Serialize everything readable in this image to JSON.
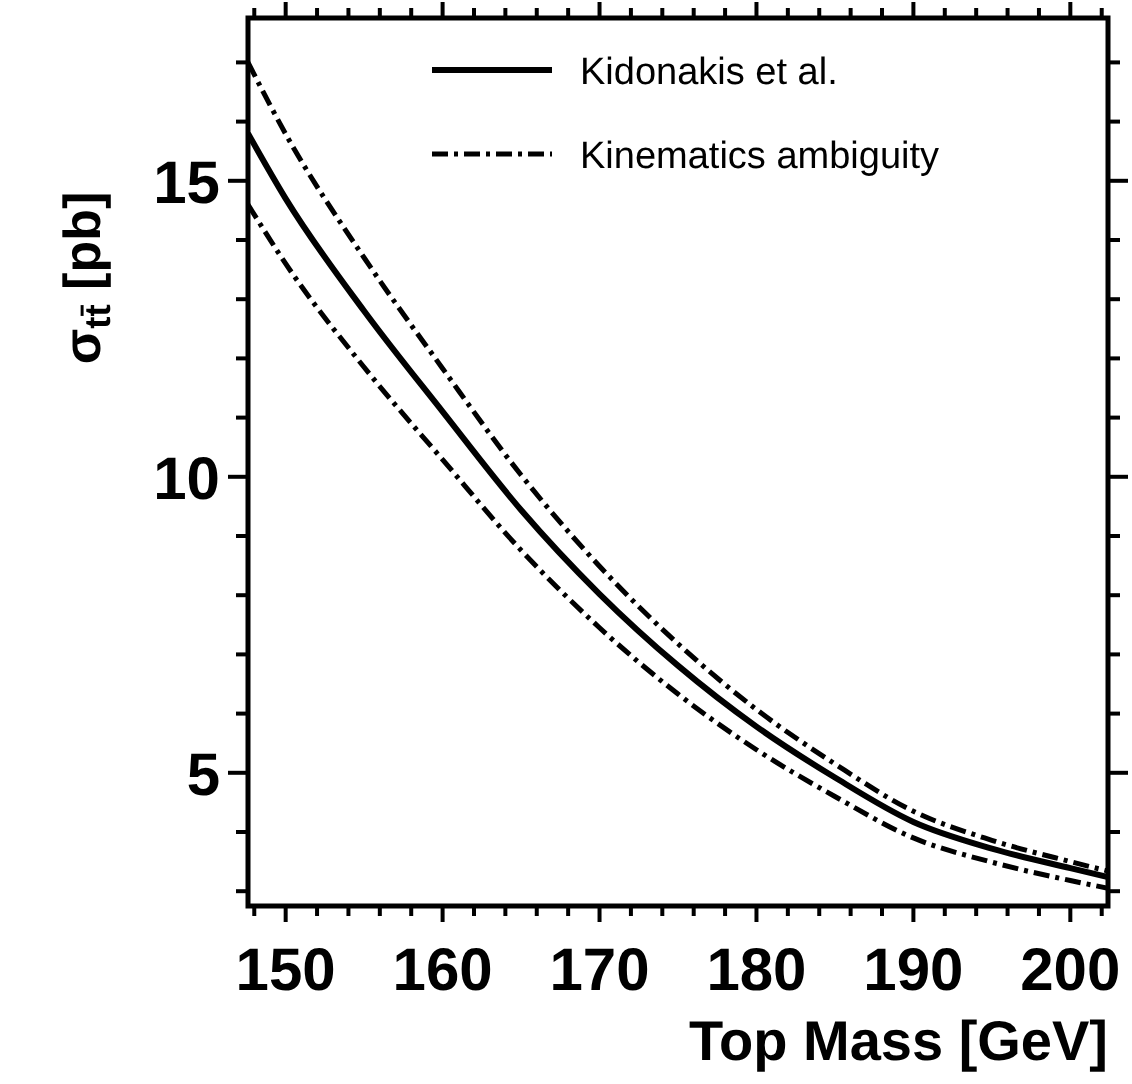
{
  "chart_data": {
    "type": "line",
    "xlabel": "Top Mass [GeV]",
    "ylabel": "σ$_{tt̄}$ [pb]",
    "x": [
      147.6,
      150,
      155,
      160,
      165,
      170,
      175,
      180,
      185,
      190,
      195,
      200,
      202.4
    ],
    "series": [
      {
        "name": "Kidonakis et al.",
        "color": "#000000",
        "line_style": "solid",
        "values": [
          15.8,
          14.7,
          12.8,
          11.1,
          9.44,
          8.02,
          6.81,
          5.78,
          4.92,
          4.17,
          3.72,
          3.39,
          3.24
        ]
      },
      {
        "name": "Kinematics ambiguity",
        "color": "#000000",
        "line_style": "dashed",
        "values": [
          17.0,
          15.79,
          13.7,
          11.83,
          10.03,
          8.49,
          7.18,
          6.07,
          5.15,
          4.35,
          3.86,
          3.5,
          3.34
        ]
      },
      {
        "color": "#000000",
        "line_style": "dashed",
        "values": [
          14.6,
          13.6,
          11.85,
          10.29,
          8.76,
          7.45,
          6.33,
          5.39,
          4.6,
          3.9,
          3.49,
          3.18,
          3.05
        ]
      }
    ],
    "xlim": [
      147.6,
      202.4
    ],
    "ylim": [
      2.75,
      17.75
    ],
    "xticks": [
      {
        "value": 148,
        "label": null
      },
      150,
      {
        "value": 152,
        "label": null
      },
      {
        "value": 154,
        "label": null
      },
      {
        "value": 156,
        "label": null
      },
      {
        "value": 158,
        "label": null
      },
      160,
      {
        "value": 162,
        "label": null
      },
      {
        "value": 164,
        "label": null
      },
      {
        "value": 166,
        "label": null
      },
      {
        "value": 168,
        "label": null
      },
      170,
      {
        "value": 172,
        "label": null
      },
      {
        "value": 174,
        "label": null
      },
      {
        "value": 176,
        "label": null
      },
      {
        "value": 178,
        "label": null
      },
      180,
      {
        "value": 182,
        "label": null
      },
      {
        "value": 184,
        "label": null
      },
      {
        "value": 186,
        "label": null
      },
      {
        "value": 188,
        "label": null
      },
      190,
      {
        "value": 192,
        "label": null
      },
      {
        "value": 194,
        "label": null
      },
      {
        "value": 196,
        "label": null
      },
      {
        "value": 198,
        "label": null
      },
      200,
      {
        "value": 202,
        "label": null
      }
    ],
    "yticks": [
      {
        "value": 3,
        "label": null
      },
      {
        "value": 4,
        "label": null
      },
      5,
      {
        "value": 6,
        "label": null
      },
      {
        "value": 7,
        "label": null
      },
      {
        "value": 8,
        "label": null
      },
      {
        "value": 9,
        "label": null
      },
      10,
      {
        "value": 11,
        "label": null
      },
      {
        "value": 12,
        "label": null
      },
      {
        "value": 13,
        "label": null
      },
      {
        "value": 14,
        "label": null
      },
      15,
      {
        "value": 16,
        "label": null
      },
      {
        "value": 17,
        "label": null
      }
    ],
    "legend": "top right",
    "marker": "none",
    "grid": false
  }
}
